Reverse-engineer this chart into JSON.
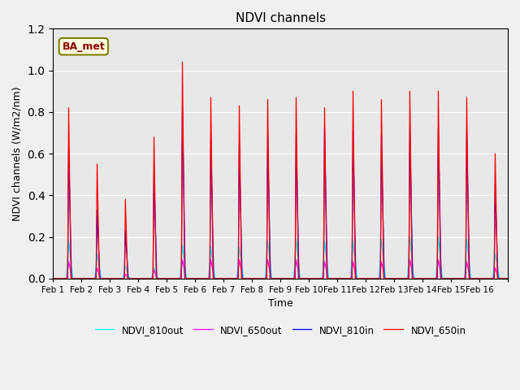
{
  "title": "NDVI channels",
  "xlabel": "Time",
  "ylabel": "NDVI channels (W/m2/nm)",
  "ylim": [
    0,
    1.2
  ],
  "fig_bg_color": "#f0f0f0",
  "plot_bg_color": "#e8e8e8",
  "legend_labels": [
    "NDVI_650in",
    "NDVI_810in",
    "NDVI_650out",
    "NDVI_810out"
  ],
  "legend_colors": [
    "red",
    "blue",
    "magenta",
    "cyan"
  ],
  "annotation_text": "BA_met",
  "x_tick_labels": [
    "Feb 1",
    "Feb 2",
    "Feb 3",
    "Feb 4",
    "Feb 5",
    "Feb 6",
    "Feb 7",
    "Feb 8",
    "Feb 9",
    "Feb 10",
    "Feb 11",
    "Feb 12",
    "Feb 13",
    "Feb 14",
    "Feb 15",
    "Feb 16"
  ],
  "peak_heights_650in": [
    0.82,
    0.55,
    0.38,
    0.68,
    1.04,
    0.87,
    0.83,
    0.86,
    0.87,
    0.82,
    0.9,
    0.86,
    0.9,
    0.9,
    0.87,
    0.6
  ],
  "peak_heights_810in": [
    0.63,
    0.33,
    0.23,
    0.51,
    0.83,
    0.69,
    0.65,
    0.68,
    0.69,
    0.72,
    0.71,
    0.69,
    0.72,
    0.72,
    0.7,
    0.45
  ],
  "peak_heights_650out": [
    0.08,
    0.05,
    0.02,
    0.04,
    0.09,
    0.09,
    0.09,
    0.09,
    0.09,
    0.08,
    0.08,
    0.08,
    0.09,
    0.09,
    0.08,
    0.05
  ],
  "peak_heights_810out": [
    0.18,
    0.12,
    0.06,
    0.05,
    0.16,
    0.15,
    0.15,
    0.18,
    0.19,
    0.18,
    0.18,
    0.19,
    0.2,
    0.2,
    0.19,
    0.12
  ],
  "points_per_day": 200,
  "num_days": 16
}
